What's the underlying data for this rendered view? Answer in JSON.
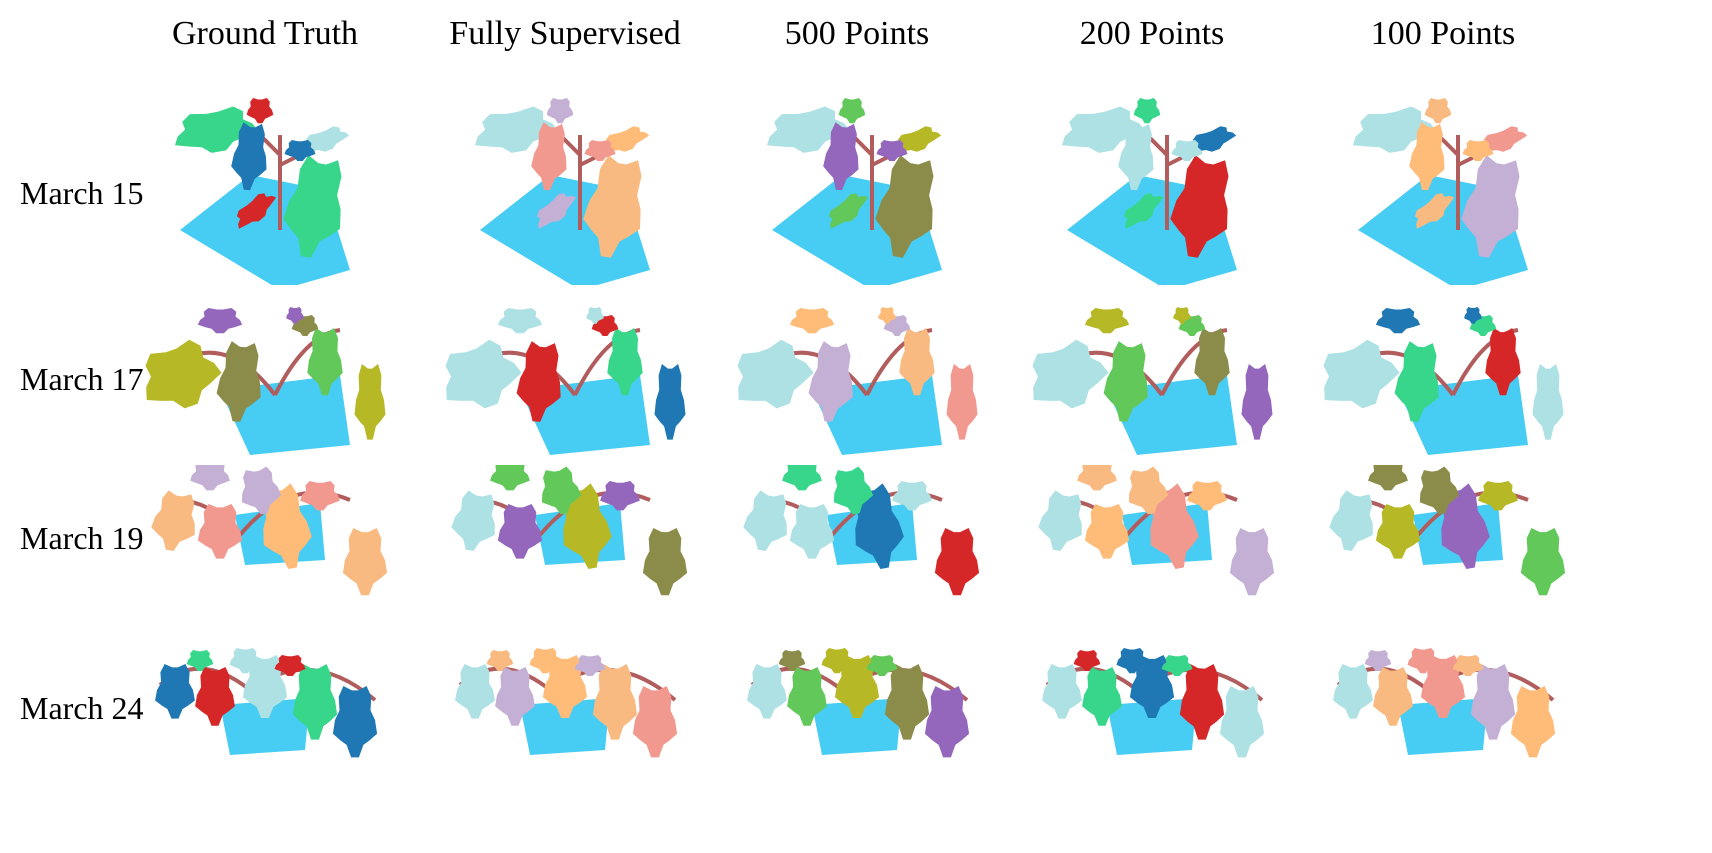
{
  "columns": [
    "Ground Truth",
    "Fully Supervised",
    "500 Points",
    "200 Points",
    "100 Points"
  ],
  "rows": [
    "March 15",
    "March 17",
    "March 19",
    "March 24"
  ],
  "palette": {
    "pot": "#33c6f2",
    "stem": "#b25d5d",
    "leaf_colors": [
      "#37d68b",
      "#b6b826",
      "#f9ba81",
      "#1f77b4",
      "#8c8c4a",
      "#f2998f",
      "#d62728",
      "#9467bd",
      "#c5b0d5",
      "#aee1e4",
      "#63c85a",
      "#ffbb78"
    ]
  }
}
